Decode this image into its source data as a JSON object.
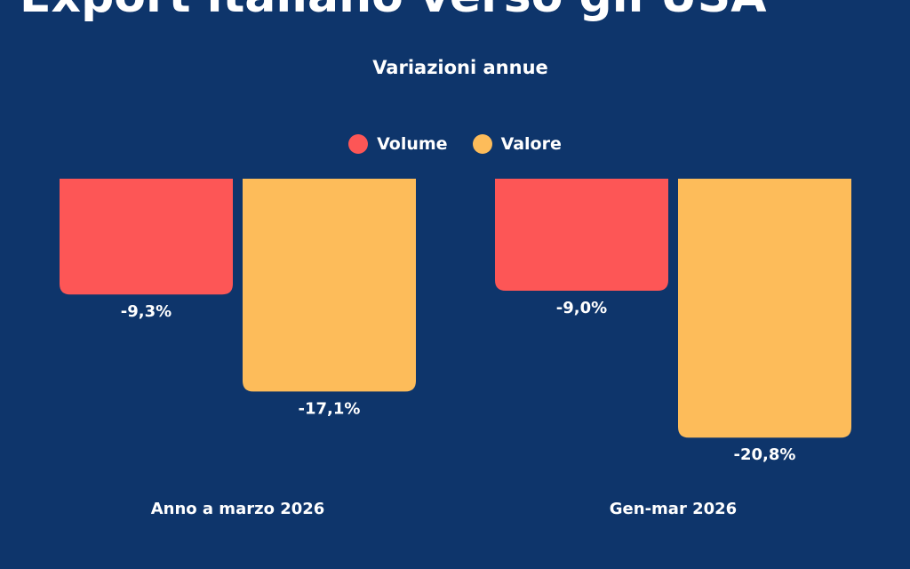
{
  "title": "Export italiano verso gli USA",
  "subtitle": "Variazioni annue",
  "colors": {
    "background": "#0e356b",
    "volume": "#fd5656",
    "valore": "#fdbc5a"
  },
  "chart_data": {
    "type": "bar",
    "title": "Variazioni annue",
    "categories": [
      "Anno a marzo 2026",
      "Gen-mar 2026"
    ],
    "series": [
      {
        "name": "Volume",
        "values": [
          -9.3,
          -9.0
        ],
        "labels": [
          "-9,3%",
          "-9,0%"
        ],
        "color": "#fd5656"
      },
      {
        "name": "Valore",
        "values": [
          -17.1,
          -20.8
        ],
        "labels": [
          "-17,1%",
          "-20,8%"
        ],
        "color": "#fdbc5a"
      }
    ],
    "ylim": [
      -21,
      0
    ],
    "grid": false,
    "legend": "top-center",
    "xlabel": "",
    "ylabel": ""
  }
}
